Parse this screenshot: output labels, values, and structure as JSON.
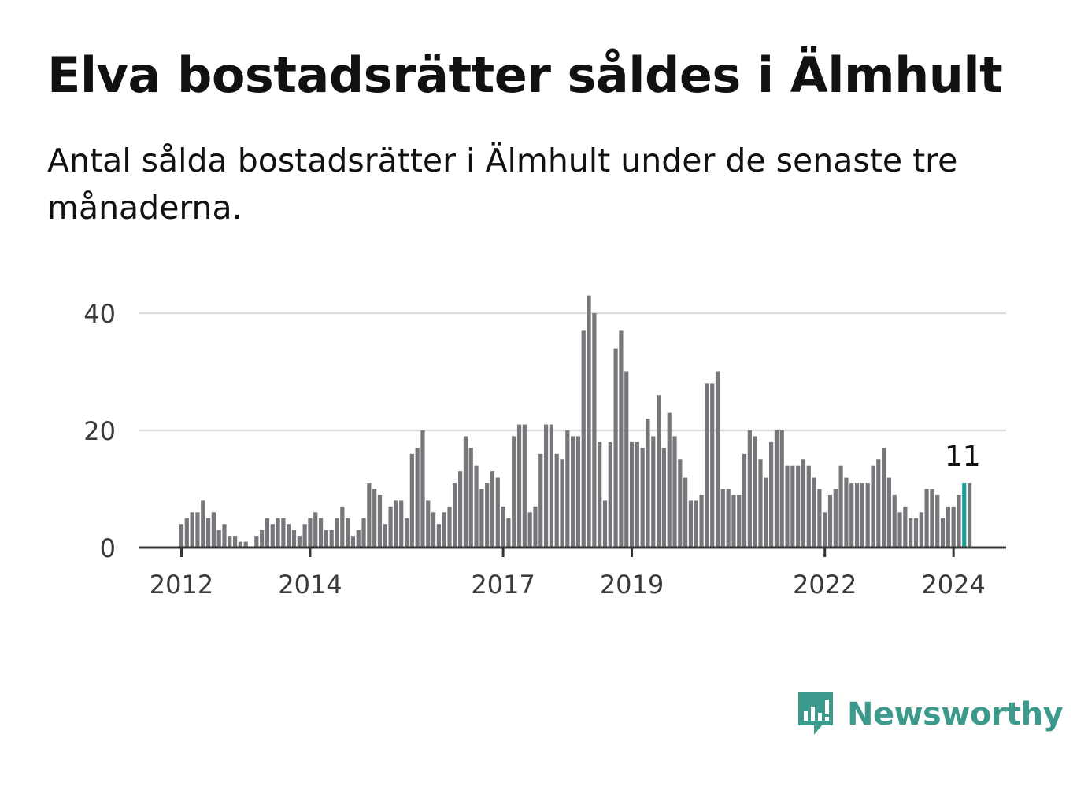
{
  "title": "Elva bostadsrätter såldes i Älmhult",
  "subtitle": "Antal sålda bostadsrätter i Älmhult under de senaste tre månaderna.",
  "logo": {
    "text": "Newsworthy",
    "icon": "newsworthy-chart-bubble-icon",
    "color": "#3c9a8c"
  },
  "colors": {
    "bar": "#77777b",
    "highlight": "#19a097",
    "grid": "#dddddd",
    "axis": "#333333"
  },
  "chart_data": {
    "type": "bar",
    "title": "Elva bostadsrätter såldes i Älmhult",
    "xlabel": "",
    "ylabel": "",
    "ylim": [
      0,
      44
    ],
    "yticks": [
      0,
      20,
      40
    ],
    "xticks": [
      {
        "label": "2012",
        "index": 0
      },
      {
        "label": "2014",
        "index": 24
      },
      {
        "label": "2017",
        "index": 60
      },
      {
        "label": "2019",
        "index": 84
      },
      {
        "label": "2022",
        "index": 120
      },
      {
        "label": "2024",
        "index": 144
      }
    ],
    "start": "2012-01",
    "frequency": "monthly",
    "values": [
      4,
      5,
      6,
      6,
      8,
      5,
      6,
      3,
      4,
      2,
      2,
      1,
      1,
      0,
      2,
      3,
      5,
      4,
      5,
      5,
      4,
      3,
      2,
      4,
      5,
      6,
      5,
      3,
      3,
      5,
      7,
      5,
      2,
      3,
      5,
      11,
      10,
      9,
      4,
      7,
      8,
      8,
      5,
      16,
      17,
      20,
      8,
      6,
      4,
      6,
      7,
      11,
      13,
      19,
      17,
      14,
      10,
      11,
      13,
      12,
      7,
      5,
      19,
      21,
      21,
      6,
      7,
      16,
      21,
      21,
      16,
      15,
      20,
      19,
      19,
      37,
      43,
      40,
      18,
      8,
      18,
      34,
      37,
      30,
      18,
      18,
      17,
      22,
      19,
      26,
      17,
      23,
      19,
      15,
      12,
      8,
      8,
      9,
      28,
      28,
      30,
      10,
      10,
      9,
      9,
      16,
      20,
      19,
      15,
      12,
      18,
      20,
      20,
      14,
      14,
      14,
      15,
      14,
      12,
      10,
      6,
      9,
      10,
      14,
      12,
      11,
      11,
      11,
      11,
      14,
      15,
      17,
      12,
      9,
      6,
      7,
      5,
      5,
      6,
      10,
      10,
      9,
      5,
      7,
      7,
      9,
      11,
      11
    ],
    "highlight_index": 146,
    "callout": {
      "label": "11",
      "index": 146
    }
  }
}
